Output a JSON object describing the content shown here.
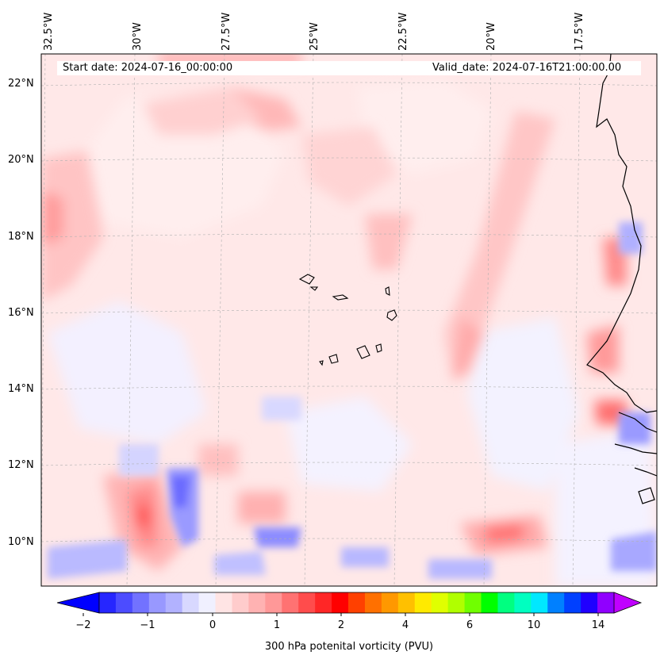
{
  "map": {
    "start_date": "Start date: 2024-07-16_00:00:00",
    "valid_date": "Valid_date: 2024-07-16T21:00:00.00",
    "lon_labels": [
      "32.5°W",
      "30°W",
      "27.5°W",
      "25°W",
      "22.5°W",
      "20°W",
      "17.5°W"
    ],
    "lat_labels": [
      "22°N",
      "20°N",
      "18°N",
      "16°N",
      "14°N",
      "12°N",
      "10°N"
    ],
    "colorbar": {
      "title": "300 hPa potenital vorticity (PVU)",
      "tick_labels": [
        "−2",
        "−1",
        "0",
        "1",
        "2",
        "4",
        "6",
        "10",
        "14"
      ],
      "colors": [
        "#0000ff",
        "#2626ff",
        "#4c4cff",
        "#7272ff",
        "#9898ff",
        "#b2b2ff",
        "#d8d8ff",
        "#f0f0ff",
        "#ffe4e4",
        "#ffcccc",
        "#ffb2b2",
        "#ff9898",
        "#ff7272",
        "#ff4c4c",
        "#ff2626",
        "#ff0000",
        "#ff4000",
        "#ff7000",
        "#ff9800",
        "#ffc000",
        "#ffea00",
        "#e0ff00",
        "#b0ff00",
        "#70ff00",
        "#00ff00",
        "#00ff80",
        "#00ffc0",
        "#00e8ff",
        "#0080ff",
        "#0040ff",
        "#2000ff",
        "#9000ff",
        "#c000ff"
      ]
    }
  }
}
